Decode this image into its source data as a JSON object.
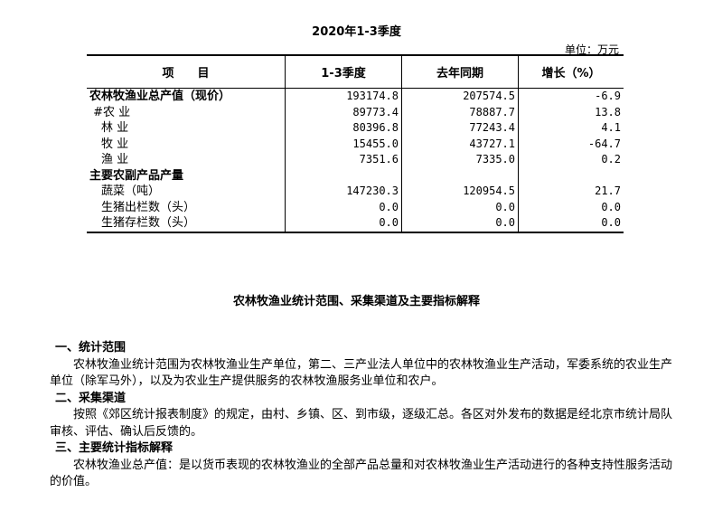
{
  "title": "2020年1-3季度",
  "unit": "单位：万元",
  "table": {
    "headers": [
      "项　　目",
      "1-3季度",
      "去年同期",
      "增长（%）"
    ],
    "rows": [
      {
        "item": "农林牧渔业总产值（现价）",
        "q": "193174.8",
        "prev": "207574.5",
        "growth": "-6.9",
        "bold": true
      },
      {
        "item": " #农 业",
        "q": "89773.4",
        "prev": "78887.7",
        "growth": "13.8"
      },
      {
        "item": "　林 业",
        "q": "80396.8",
        "prev": "77243.4",
        "growth": "4.1"
      },
      {
        "item": "　牧 业",
        "q": "15455.0",
        "prev": "43727.1",
        "growth": "-64.7"
      },
      {
        "item": "　渔 业",
        "q": "7351.6",
        "prev": "7335.0",
        "growth": "0.2"
      },
      {
        "item": "主要农副产品产量",
        "q": "",
        "prev": "",
        "growth": "",
        "bold": true
      },
      {
        "item": "　蔬菜（吨）",
        "q": "147230.3",
        "prev": "120954.5",
        "growth": "21.7"
      },
      {
        "item": "　生猪出栏数（头）",
        "q": "0.0",
        "prev": "0.0",
        "growth": "0.0"
      },
      {
        "item": "　生猪存栏数（头）",
        "q": "0.0",
        "prev": "0.0",
        "growth": "0.0"
      }
    ]
  },
  "notes": {
    "heading": "农林牧渔业统计范围、采集渠道及主要指标解释",
    "s1": "一、统计范围",
    "p1": "农林牧渔业统计范围为农林牧渔业生产单位，第二、三产业法人单位中的农林牧渔业生产活动，军委系统的农业生产单位（除军马外），以及为农业生产提供服务的农林牧渔服务业单位和农户。",
    "s2": "二、采集渠道",
    "p2": "按照《郊区统计报表制度》的规定，由村、乡镇、区、到市级，逐级汇总。各区对外发布的数据是经北京市统计局队审核、评估、确认后反馈的。",
    "s3": "三、主要统计指标解释",
    "p3": "农林牧渔业总产值：是以货币表现的农林牧渔业的全部产品总量和对农林牧渔业生产活动进行的各种支持性服务活动的价值。"
  }
}
